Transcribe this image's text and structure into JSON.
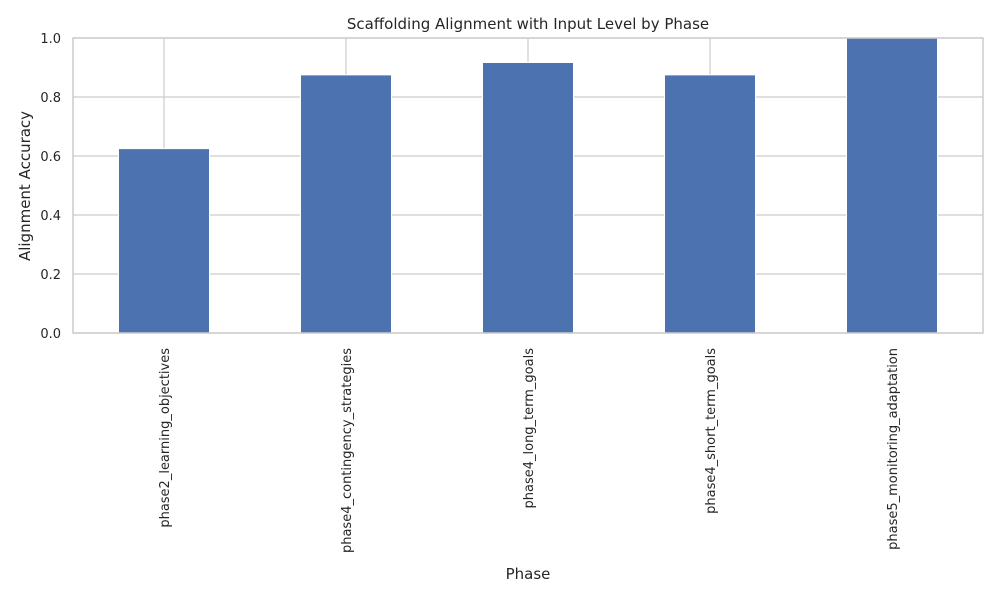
{
  "chart_data": {
    "type": "bar",
    "title": "Scaffolding Alignment with Input Level by Phase",
    "xlabel": "Phase",
    "ylabel": "Alignment Accuracy",
    "categories": [
      "phase2_learning_objectives",
      "phase4_contingency_strategies",
      "phase4_long_term_goals",
      "phase4_short_term_goals",
      "phase5_monitoring_adaptation"
    ],
    "values": [
      0.625,
      0.875,
      0.917,
      0.875,
      1.0
    ],
    "ylim": [
      0,
      1.0
    ],
    "yticks": [
      "0.0",
      "0.2",
      "0.4",
      "0.6",
      "0.8",
      "1.0"
    ],
    "grid": true,
    "legend": "none",
    "bar_color": "#4c72b0",
    "grid_color": "#cccccc",
    "background": "#ffffff"
  }
}
